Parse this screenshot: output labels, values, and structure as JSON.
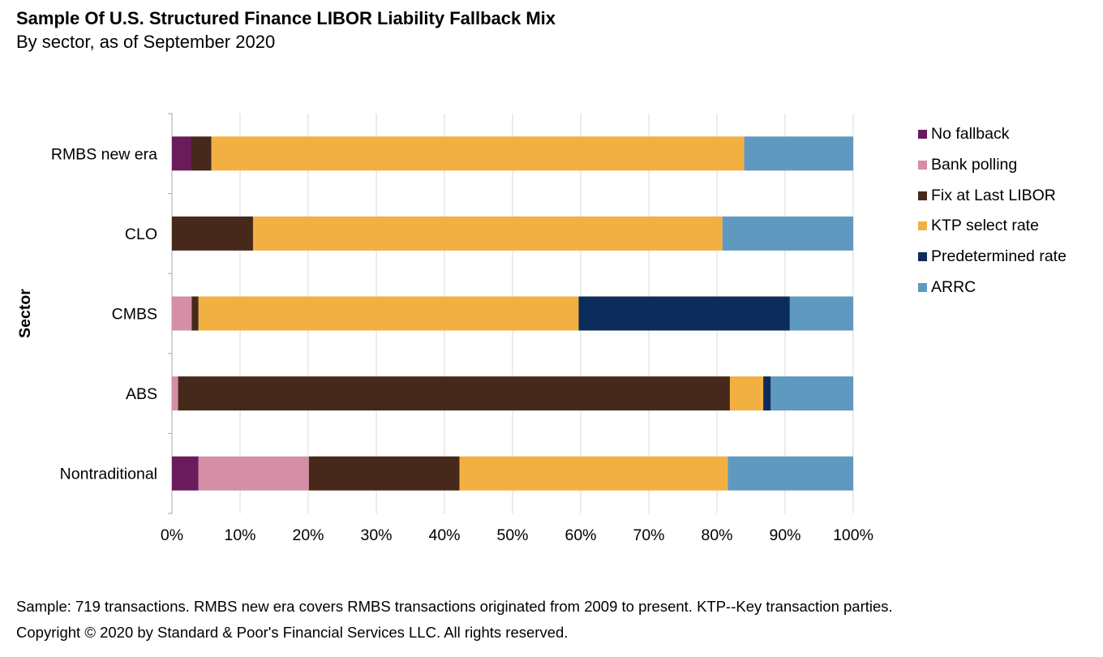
{
  "chart_data": {
    "type": "bar",
    "orientation": "horizontal",
    "stacked": true,
    "title": "Sample Of U.S. Structured Finance LIBOR Liability Fallback Mix",
    "subtitle": "By sector, as of September 2020",
    "xlabel": "",
    "ylabel": "Sector",
    "xlim": [
      0,
      100
    ],
    "xticks": [
      "0%",
      "10%",
      "20%",
      "30%",
      "40%",
      "50%",
      "60%",
      "70%",
      "80%",
      "90%",
      "100%"
    ],
    "grid": "vertical",
    "legend_position": "right",
    "categories": [
      "RMBS new era",
      "CLO",
      "CMBS",
      "ABS",
      "Nontraditional"
    ],
    "series": [
      {
        "name": "No fallback",
        "color": "#6a1b5c",
        "values": [
          2.8,
          0,
          0,
          0,
          3.9
        ]
      },
      {
        "name": "Bank polling",
        "color": "#d48ea5",
        "values": [
          0,
          0,
          2.9,
          0.9,
          16.2
        ]
      },
      {
        "name": "Fix at Last LIBOR",
        "color": "#47291b",
        "values": [
          3.0,
          11.9,
          1.0,
          81.0,
          22.1
        ]
      },
      {
        "name": "KTP select rate",
        "color": "#f2b042",
        "values": [
          78.2,
          68.9,
          55.8,
          4.9,
          39.4
        ]
      },
      {
        "name": "Predetermined rate",
        "color": "#0c2c5c",
        "values": [
          0,
          0,
          31.0,
          1.1,
          0
        ]
      },
      {
        "name": "ARRC",
        "color": "#5f99c0",
        "values": [
          16.0,
          19.2,
          9.3,
          12.1,
          18.4
        ]
      }
    ]
  },
  "footer": {
    "note": "Sample: 719 transactions. RMBS new era covers RMBS transactions originated from 2009 to present. KTP--Key transaction parties.",
    "copyright": "Copyright © 2020 by Standard & Poor's Financial Services LLC. All rights reserved."
  }
}
